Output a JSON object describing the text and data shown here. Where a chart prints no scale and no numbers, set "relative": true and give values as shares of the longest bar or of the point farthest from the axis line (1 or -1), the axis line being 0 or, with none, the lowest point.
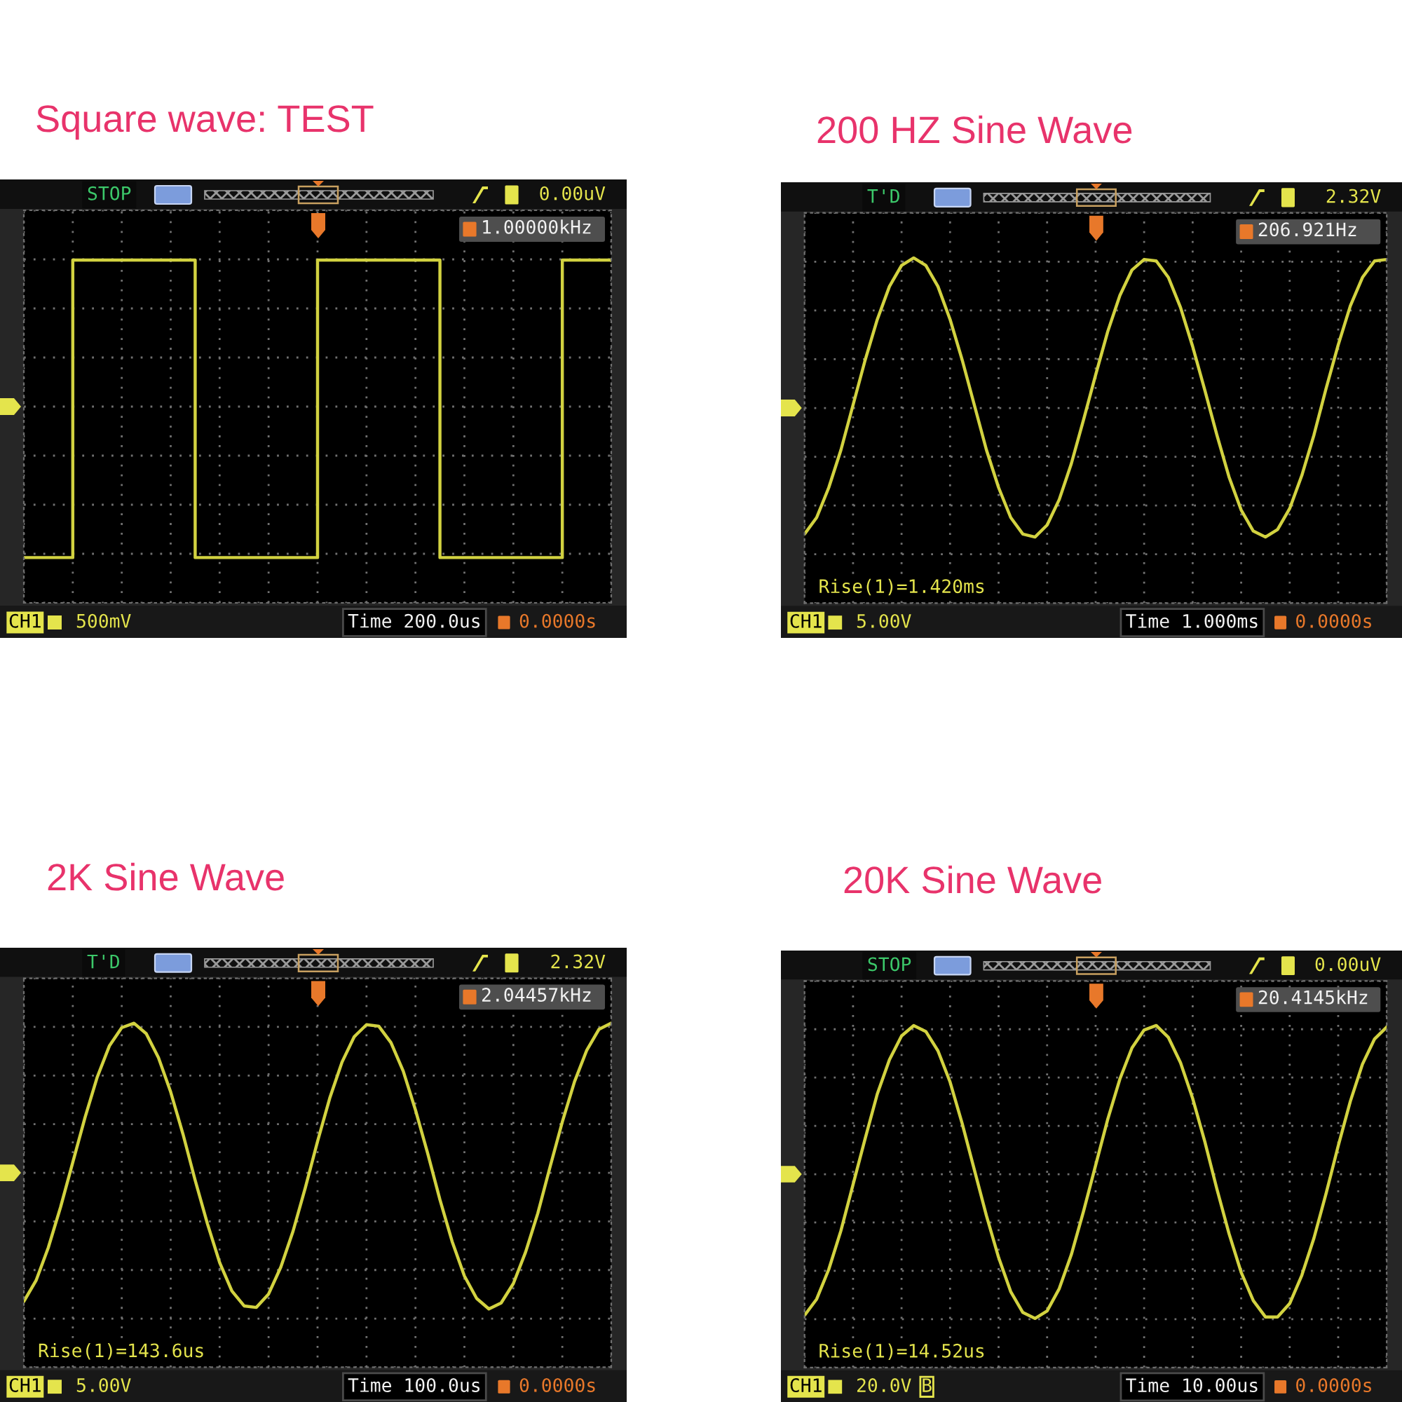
{
  "chart_data": [
    {
      "type": "step",
      "title": "Square wave: TEST",
      "relative": true,
      "grid": true,
      "color": "#d2d240",
      "categories": [
        null,
        null,
        null,
        null,
        null,
        null,
        null,
        null,
        null,
        null,
        null,
        null,
        null,
        null,
        null,
        null,
        null,
        null,
        null,
        null,
        null,
        null,
        null,
        null,
        null
      ],
      "values": [
        -1,
        -1,
        0.97,
        0.97,
        0.97,
        0.97,
        0.97,
        -1,
        -1,
        -1,
        -1,
        -1,
        0.97,
        0.97,
        0.97,
        0.97,
        0.97,
        -1,
        -1,
        -1,
        -1,
        -1,
        0.97,
        0.97,
        0.97
      ],
      "annotations": [
        "STOP",
        "0.00uV",
        "1.00000kHz",
        "CH1",
        "500mV",
        "Time 200.0us",
        "0.0000s"
      ]
    },
    {
      "type": "line",
      "title": "200 HZ Sine Wave",
      "relative": true,
      "grid": true,
      "color": "#d2d240",
      "categories": [
        null,
        null,
        null,
        null,
        null,
        null,
        null,
        null,
        null,
        null,
        null,
        null,
        null,
        null,
        null,
        null,
        null,
        null,
        null,
        null,
        null,
        null,
        null,
        null,
        null,
        null,
        null,
        null,
        null,
        null,
        null,
        null,
        null,
        null,
        null,
        null,
        null,
        null,
        null,
        null,
        null,
        null,
        null,
        null,
        null,
        null,
        null,
        null,
        null
      ],
      "values": [
        -0.84,
        -0.73,
        -0.53,
        -0.28,
        0.02,
        0.32,
        0.59,
        0.81,
        0.95,
        1.0,
        0.95,
        0.81,
        0.59,
        0.32,
        0.02,
        -0.28,
        -0.53,
        -0.73,
        -0.84,
        -0.86,
        -0.78,
        -0.61,
        -0.37,
        -0.08,
        0.22,
        0.51,
        0.75,
        0.92,
        0.99,
        0.98,
        0.87,
        0.67,
        0.41,
        0.12,
        -0.18,
        -0.46,
        -0.68,
        -0.82,
        -0.86,
        -0.81,
        -0.67,
        -0.45,
        -0.18,
        0.13,
        0.42,
        0.68,
        0.87,
        0.98,
        0.99
      ],
      "annotations": [
        "T'D",
        "2.32V",
        "206.921Hz",
        "Rise(1)=1.420ms",
        "CH1",
        "5.00V",
        "Time 1.000ms",
        "0.0000s"
      ]
    },
    {
      "type": "line",
      "title": "2K Sine Wave",
      "relative": true,
      "grid": true,
      "color": "#d2d240",
      "categories": [
        null,
        null,
        null,
        null,
        null,
        null,
        null,
        null,
        null,
        null,
        null,
        null,
        null,
        null,
        null,
        null,
        null,
        null,
        null,
        null,
        null,
        null,
        null,
        null,
        null,
        null,
        null,
        null,
        null,
        null,
        null,
        null,
        null,
        null,
        null,
        null,
        null,
        null,
        null,
        null,
        null,
        null,
        null,
        null,
        null,
        null,
        null,
        null,
        null
      ],
      "values": [
        -0.86,
        -0.72,
        -0.5,
        -0.23,
        0.07,
        0.37,
        0.64,
        0.85,
        0.97,
        1.0,
        0.93,
        0.77,
        0.54,
        0.26,
        -0.05,
        -0.34,
        -0.6,
        -0.79,
        -0.89,
        -0.9,
        -0.81,
        -0.63,
        -0.39,
        -0.1,
        0.21,
        0.5,
        0.74,
        0.91,
        0.99,
        0.98,
        0.87,
        0.68,
        0.42,
        0.13,
        -0.18,
        -0.46,
        -0.69,
        -0.84,
        -0.91,
        -0.87,
        -0.74,
        -0.53,
        -0.27,
        0.04,
        0.34,
        0.61,
        0.82,
        0.96,
        1.0
      ],
      "annotations": [
        "T'D",
        "2.32V",
        "2.04457kHz",
        "Rise(1)=143.6us",
        "CH1",
        "5.00V",
        "Time 100.0us",
        "0.0000s"
      ]
    },
    {
      "type": "line",
      "title": "20K Sine Wave",
      "relative": true,
      "grid": true,
      "color": "#d2d240",
      "categories": [
        null,
        null,
        null,
        null,
        null,
        null,
        null,
        null,
        null,
        null,
        null,
        null,
        null,
        null,
        null,
        null,
        null,
        null,
        null,
        null,
        null,
        null,
        null,
        null,
        null,
        null,
        null,
        null,
        null,
        null,
        null,
        null,
        null,
        null,
        null,
        null,
        null,
        null,
        null,
        null,
        null,
        null,
        null,
        null,
        null,
        null,
        null,
        null,
        null
      ],
      "values": [
        -0.95,
        -0.84,
        -0.64,
        -0.38,
        -0.07,
        0.24,
        0.54,
        0.77,
        0.93,
        1.0,
        0.96,
        0.83,
        0.62,
        0.34,
        0.03,
        -0.28,
        -0.56,
        -0.79,
        -0.93,
        -0.97,
        -0.92,
        -0.77,
        -0.54,
        -0.25,
        0.06,
        0.37,
        0.64,
        0.85,
        0.97,
        1.0,
        0.92,
        0.75,
        0.51,
        0.22,
        -0.1,
        -0.4,
        -0.66,
        -0.85,
        -0.96,
        -0.96,
        -0.87,
        -0.68,
        -0.43,
        -0.13,
        0.19,
        0.49,
        0.74,
        0.91,
        0.99
      ],
      "annotations": [
        "STOP",
        "0.00uV",
        "20.4145kHz",
        "Rise(1)=14.52us",
        "CH1",
        "20.0V",
        "B",
        "Time 10.00us",
        "0.0000s"
      ]
    }
  ]
}
